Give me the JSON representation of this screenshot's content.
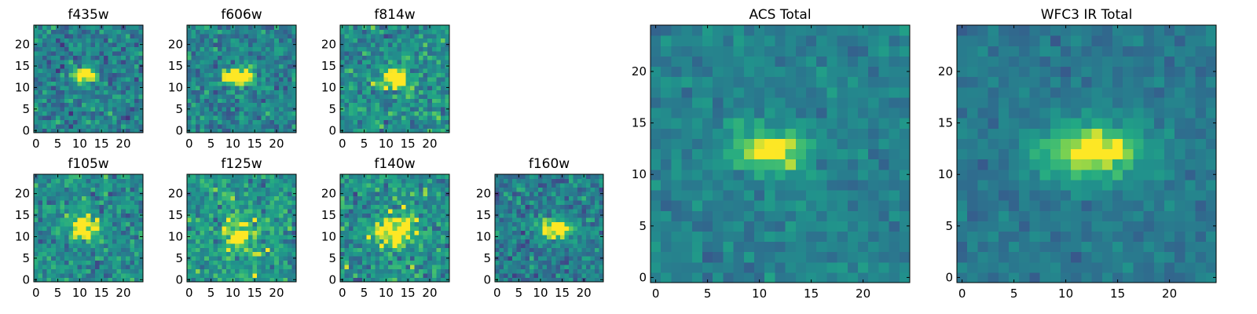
{
  "chart_data": [
    {
      "type": "heatmap",
      "title": "f435w",
      "xticks": [
        0,
        5,
        10,
        15,
        20
      ],
      "yticks": [
        0,
        5,
        10,
        15,
        20
      ],
      "xlim": [
        0,
        25
      ],
      "ylim": [
        0,
        25
      ],
      "grid": false,
      "colormap": "viridis",
      "source_center": [
        11.5,
        13.5
      ],
      "source_sigma": [
        2.0,
        1.2
      ],
      "source_peak": 0.78,
      "background": 0.55,
      "noise": 0.24
    },
    {
      "type": "heatmap",
      "title": "f606w",
      "xticks": [
        0,
        5,
        10,
        15,
        20
      ],
      "yticks": [
        0,
        5,
        10,
        15,
        20
      ],
      "xlim": [
        0,
        25
      ],
      "ylim": [
        0,
        25
      ],
      "grid": false,
      "colormap": "viridis",
      "source_center": [
        12.0,
        13.0
      ],
      "source_sigma": [
        2.2,
        1.3
      ],
      "source_peak": 0.95,
      "background": 0.55,
      "noise": 0.22
    },
    {
      "type": "heatmap",
      "title": "f814w",
      "xticks": [
        0,
        5,
        10,
        15,
        20
      ],
      "yticks": [
        0,
        5,
        10,
        15,
        20
      ],
      "xlim": [
        0,
        25
      ],
      "ylim": [
        0,
        25
      ],
      "grid": false,
      "colormap": "viridis",
      "source_center": [
        12.5,
        12.5
      ],
      "source_sigma": [
        2.3,
        1.6
      ],
      "source_peak": 0.62,
      "background": 0.62,
      "noise": 0.24
    },
    {
      "type": "heatmap",
      "title": "f105w",
      "xticks": [
        0,
        5,
        10,
        15,
        20
      ],
      "yticks": [
        0,
        5,
        10,
        15,
        20
      ],
      "xlim": [
        0,
        25
      ],
      "ylim": [
        0,
        25
      ],
      "grid": false,
      "colormap": "viridis",
      "source_center": [
        11.5,
        13.0
      ],
      "source_sigma": [
        2.5,
        2.0
      ],
      "source_peak": 0.6,
      "background": 0.6,
      "noise": 0.22
    },
    {
      "type": "heatmap",
      "title": "f125w",
      "xticks": [
        0,
        5,
        10,
        15,
        20
      ],
      "yticks": [
        0,
        5,
        10,
        15,
        20
      ],
      "xlim": [
        0,
        25
      ],
      "ylim": [
        0,
        25
      ],
      "grid": false,
      "colormap": "viridis",
      "source_center": [
        11.5,
        11.0
      ],
      "source_sigma": [
        2.5,
        3.0
      ],
      "source_peak": 0.45,
      "background": 0.66,
      "noise": 0.24
    },
    {
      "type": "heatmap",
      "title": "f140w",
      "xticks": [
        0,
        5,
        10,
        15,
        20
      ],
      "yticks": [
        0,
        5,
        10,
        15,
        20
      ],
      "xlim": [
        0,
        25
      ],
      "ylim": [
        0,
        25
      ],
      "grid": false,
      "colormap": "viridis",
      "source_center": [
        12.5,
        12.0
      ],
      "source_sigma": [
        3.5,
        2.8
      ],
      "source_peak": 0.55,
      "background": 0.62,
      "noise": 0.24
    },
    {
      "type": "heatmap",
      "title": "f160w",
      "xticks": [
        0,
        5,
        10,
        15,
        20
      ],
      "yticks": [
        0,
        5,
        10,
        15,
        20
      ],
      "xlim": [
        0,
        25
      ],
      "ylim": [
        0,
        25
      ],
      "grid": false,
      "colormap": "viridis",
      "source_center": [
        13.5,
        12.5
      ],
      "source_sigma": [
        2.8,
        1.6
      ],
      "source_peak": 0.7,
      "background": 0.52,
      "noise": 0.22
    },
    {
      "type": "heatmap",
      "title": "ACS Total",
      "xticks": [
        0,
        5,
        10,
        15,
        20
      ],
      "yticks": [
        0,
        5,
        10,
        15,
        20
      ],
      "xlim": [
        0,
        25
      ],
      "ylim": [
        0,
        25
      ],
      "grid": false,
      "colormap": "viridis",
      "source_center": [
        11.5,
        12.8
      ],
      "source_sigma": [
        2.6,
        1.4
      ],
      "source_peak": 0.6,
      "background": 0.55,
      "noise": 0.12
    },
    {
      "type": "heatmap",
      "title": "WFC3 IR Total",
      "xticks": [
        0,
        5,
        10,
        15,
        20
      ],
      "yticks": [
        0,
        5,
        10,
        15,
        20
      ],
      "xlim": [
        0,
        25
      ],
      "ylim": [
        0,
        25
      ],
      "grid": false,
      "colormap": "viridis",
      "source_center": [
        13.0,
        12.8
      ],
      "source_sigma": [
        3.6,
        2.0
      ],
      "source_peak": 0.62,
      "background": 0.5,
      "noise": 0.1
    }
  ]
}
